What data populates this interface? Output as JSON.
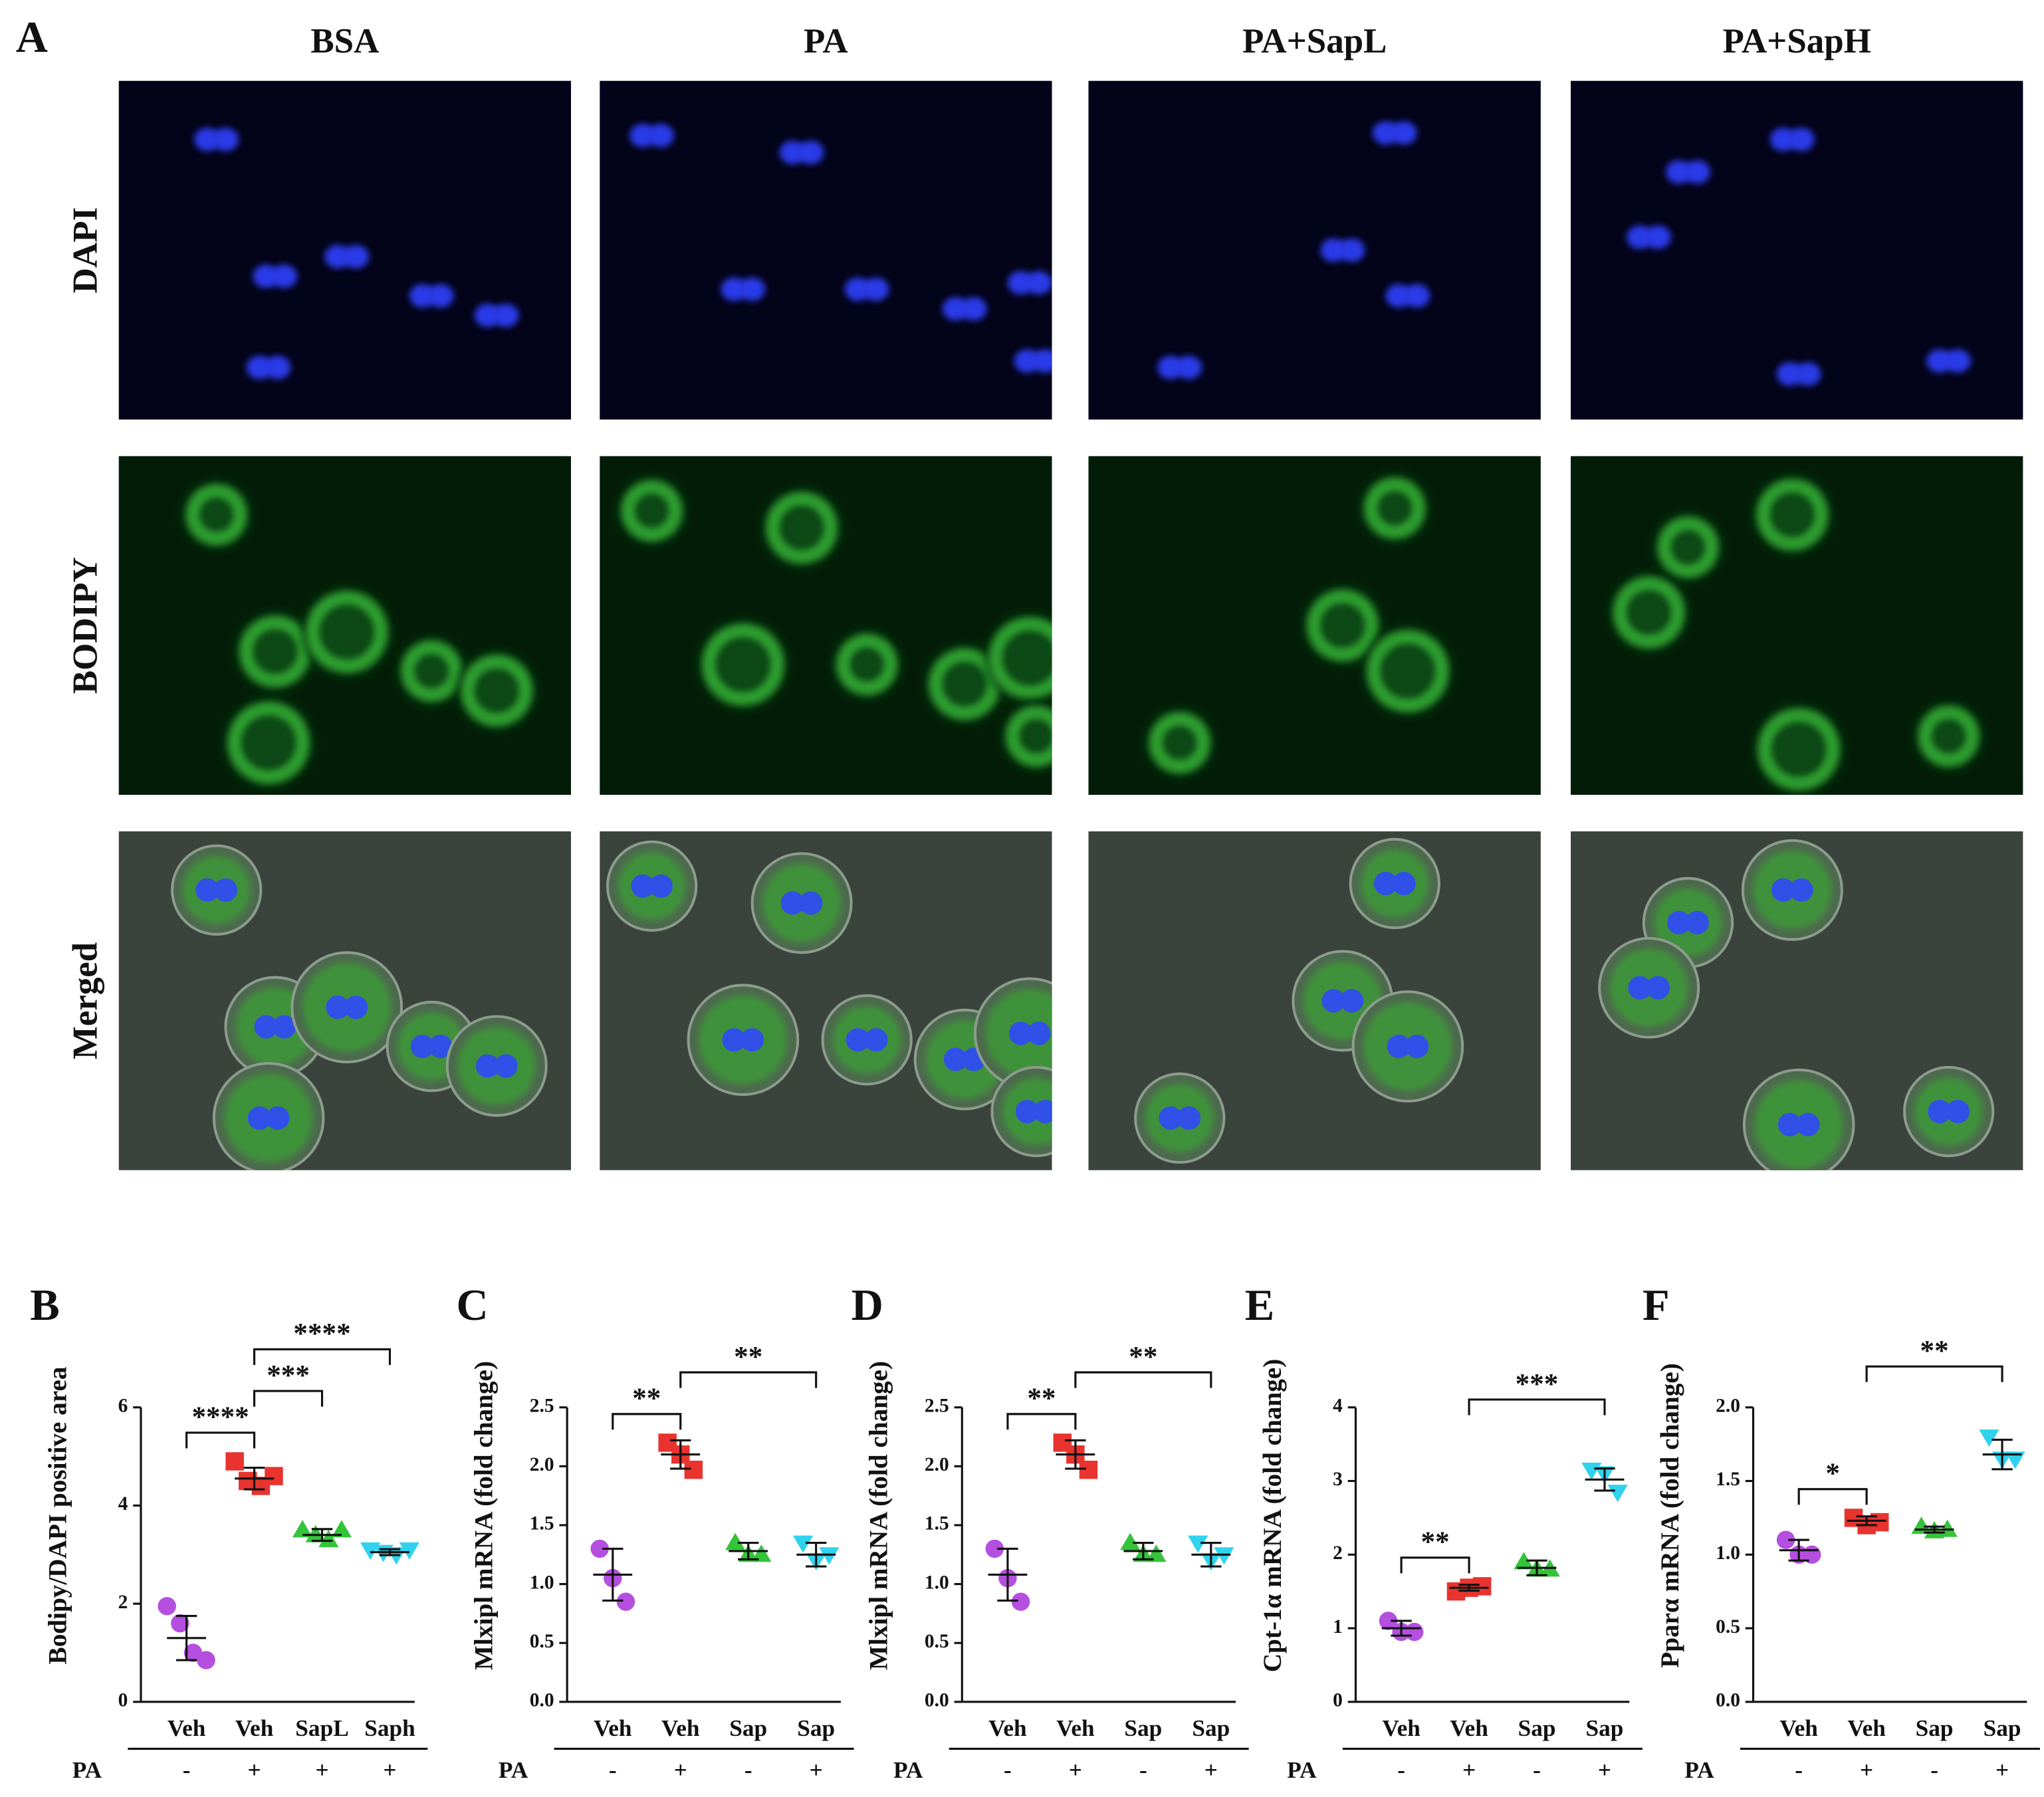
{
  "figure": {
    "panel_label": "A",
    "columns": [
      "BSA",
      "PA",
      "PA+SapL",
      "PA+SapH"
    ],
    "rows": [
      "DAPI",
      "BODIPY",
      "Merged"
    ]
  },
  "chart_data": [
    {
      "type": "dot",
      "panel": "B",
      "ylabel": "Bodipy/DAPI positive area",
      "categories": [
        "Veh",
        "Veh",
        "SapL",
        "Saph"
      ],
      "pa_label": "PA",
      "pa": [
        "-",
        "+",
        "+",
        "+"
      ],
      "ylim": [
        0,
        6
      ],
      "yticks": [
        0,
        2,
        4,
        6
      ],
      "groups": [
        {
          "marker": "circle",
          "color": "#b44fe0",
          "values": [
            1.95,
            1.6,
            1.0,
            0.85
          ],
          "mean": 1.3,
          "sd": 0.45
        },
        {
          "marker": "square",
          "color": "#e8332e",
          "values": [
            4.9,
            4.5,
            4.4,
            4.6
          ],
          "mean": 4.55,
          "sd": 0.22
        },
        {
          "marker": "triangle",
          "color": "#34c43a",
          "values": [
            3.5,
            3.4,
            3.3,
            3.5
          ],
          "mean": 3.4,
          "sd": 0.12
        },
        {
          "marker": "triangle-down",
          "color": "#2fd3ee",
          "values": [
            3.1,
            3.05,
            3.0,
            3.1
          ],
          "mean": 3.05,
          "sd": 0.06
        }
      ],
      "brackets": [
        {
          "from": 0,
          "to": 1,
          "label": "****"
        },
        {
          "from": 1,
          "to": 2,
          "label": "***"
        },
        {
          "from": 1,
          "to": 3,
          "label": "****"
        }
      ]
    },
    {
      "type": "dot",
      "panel": "C",
      "ylabel": "Mlxipl mRNA (fold change)",
      "categories": [
        "Veh",
        "Veh",
        "Sap",
        "Sap"
      ],
      "pa_label": "PA",
      "pa": [
        "-",
        "+",
        "-",
        "+"
      ],
      "ylim": [
        0,
        2.5
      ],
      "yticks": [
        {
          "value": 0,
          "label": "0.0"
        },
        0.5,
        {
          "value": 1,
          "label": "1.0"
        },
        1.5,
        {
          "value": 2,
          "label": "2.0"
        },
        2.5
      ],
      "groups": [
        {
          "marker": "circle",
          "color": "#b44fe0",
          "values": [
            1.3,
            1.05,
            0.85
          ],
          "mean": 1.08,
          "sd": 0.22
        },
        {
          "marker": "square",
          "color": "#e8332e",
          "values": [
            2.2,
            2.1,
            1.97
          ],
          "mean": 2.1,
          "sd": 0.12
        },
        {
          "marker": "triangle",
          "color": "#34c43a",
          "values": [
            1.35,
            1.25,
            1.25
          ],
          "mean": 1.28,
          "sd": 0.07
        },
        {
          "marker": "triangle-down",
          "color": "#2fd3ee",
          "values": [
            1.35,
            1.2,
            1.25
          ],
          "mean": 1.25,
          "sd": 0.1
        }
      ],
      "brackets": [
        {
          "from": 0,
          "to": 1,
          "label": "**"
        },
        {
          "from": 1,
          "to": 3,
          "label": "**"
        }
      ]
    },
    {
      "type": "dot",
      "panel": "D",
      "ylabel": "Mlxipl mRNA (fold change)",
      "categories": [
        "Veh",
        "Veh",
        "Sap",
        "Sap"
      ],
      "pa_label": "PA",
      "pa": [
        "-",
        "+",
        "-",
        "+"
      ],
      "ylim": [
        0,
        2.5
      ],
      "yticks": [
        {
          "value": 0,
          "label": "0.0"
        },
        0.5,
        {
          "value": 1,
          "label": "1.0"
        },
        1.5,
        {
          "value": 2,
          "label": "2.0"
        },
        2.5
      ],
      "groups": [
        {
          "marker": "circle",
          "color": "#b44fe0",
          "values": [
            1.3,
            1.05,
            0.85
          ],
          "mean": 1.08,
          "sd": 0.22
        },
        {
          "marker": "square",
          "color": "#e8332e",
          "values": [
            2.2,
            2.1,
            1.97
          ],
          "mean": 2.1,
          "sd": 0.12
        },
        {
          "marker": "triangle",
          "color": "#34c43a",
          "values": [
            1.35,
            1.25,
            1.25
          ],
          "mean": 1.28,
          "sd": 0.07
        },
        {
          "marker": "triangle-down",
          "color": "#2fd3ee",
          "values": [
            1.35,
            1.2,
            1.25
          ],
          "mean": 1.25,
          "sd": 0.1
        }
      ],
      "brackets": [
        {
          "from": 0,
          "to": 1,
          "label": "**"
        },
        {
          "from": 1,
          "to": 3,
          "label": "**"
        }
      ]
    },
    {
      "type": "dot",
      "panel": "E",
      "ylabel": "Cpt-1α mRNA (fold change)",
      "categories": [
        "Veh",
        "Veh",
        "Sap",
        "Sap"
      ],
      "pa_label": "PA",
      "pa": [
        "-",
        "+",
        "-",
        "+"
      ],
      "ylim": [
        0,
        4
      ],
      "yticks": [
        0,
        1,
        2,
        3,
        4
      ],
      "groups": [
        {
          "marker": "circle",
          "color": "#b44fe0",
          "values": [
            1.1,
            0.95,
            0.95
          ],
          "mean": 1.0,
          "sd": 0.1
        },
        {
          "marker": "square",
          "color": "#e8332e",
          "values": [
            1.5,
            1.55,
            1.57
          ],
          "mean": 1.55,
          "sd": 0.04
        },
        {
          "marker": "triangle",
          "color": "#34c43a",
          "values": [
            1.9,
            1.8,
            1.8
          ],
          "mean": 1.82,
          "sd": 0.1
        },
        {
          "marker": "triangle-down",
          "color": "#2fd3ee",
          "values": [
            3.15,
            3.1,
            2.85
          ],
          "mean": 3.02,
          "sd": 0.15
        }
      ],
      "brackets": [
        {
          "from": 0,
          "to": 1,
          "label": "**"
        },
        {
          "from": 1,
          "to": 3,
          "label": "***"
        }
      ]
    },
    {
      "type": "dot",
      "panel": "F",
      "ylabel": "Pparα mRNA (fold change)",
      "categories": [
        "Veh",
        "Veh",
        "Sap",
        "Sap"
      ],
      "pa_label": "PA",
      "pa": [
        "-",
        "+",
        "-",
        "+"
      ],
      "ylim": [
        0,
        2
      ],
      "yticks": [
        {
          "value": 0,
          "label": "0.0"
        },
        0.5,
        {
          "value": 1,
          "label": "1.0"
        },
        1.5,
        {
          "value": 2,
          "label": "2.0"
        }
      ],
      "groups": [
        {
          "marker": "circle",
          "color": "#b44fe0",
          "values": [
            1.1,
            1.0,
            1.0
          ],
          "mean": 1.03,
          "sd": 0.07
        },
        {
          "marker": "square",
          "color": "#e8332e",
          "values": [
            1.25,
            1.2,
            1.22
          ],
          "mean": 1.23,
          "sd": 0.03
        },
        {
          "marker": "triangle",
          "color": "#34c43a",
          "values": [
            1.19,
            1.16,
            1.17
          ],
          "mean": 1.17,
          "sd": 0.02
        },
        {
          "marker": "triangle-down",
          "color": "#2fd3ee",
          "values": [
            1.8,
            1.65,
            1.65
          ],
          "mean": 1.68,
          "sd": 0.1
        }
      ],
      "brackets": [
        {
          "from": 0,
          "to": 1,
          "label": "*"
        },
        {
          "from": 1,
          "to": 3,
          "label": "**"
        }
      ]
    }
  ]
}
